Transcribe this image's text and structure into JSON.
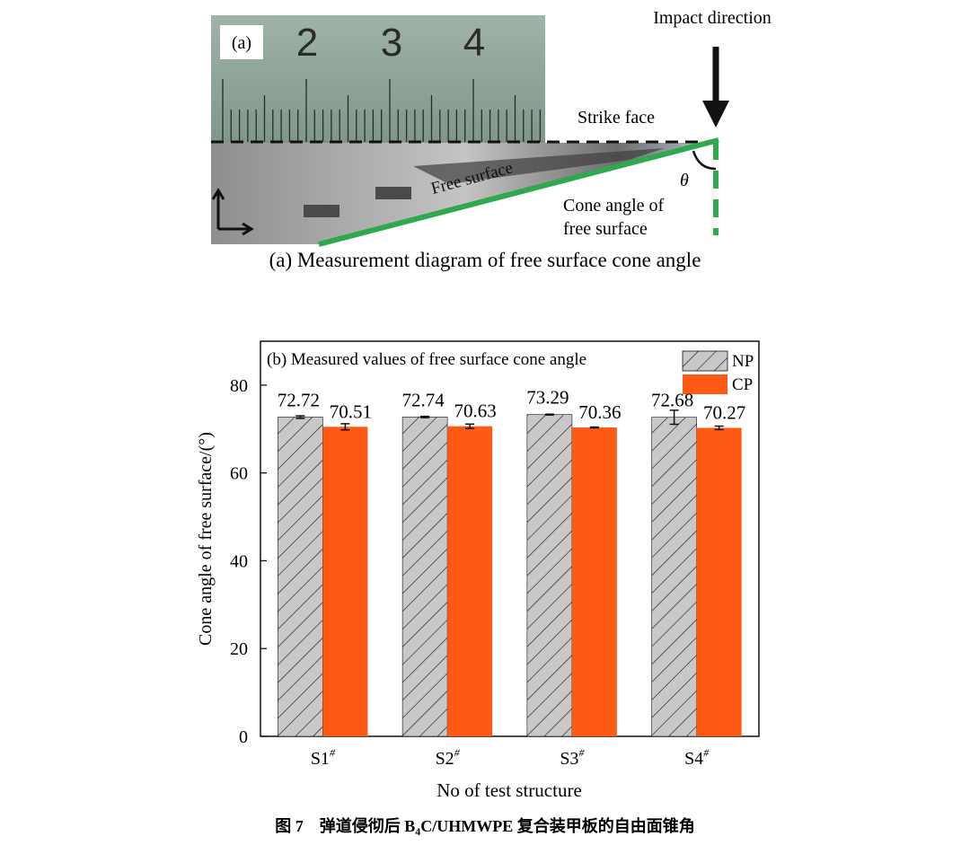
{
  "panel_a": {
    "label": "(a)",
    "ruler_numbers": [
      "2",
      "3",
      "4"
    ],
    "annotations": {
      "impact_direction": "Impact direction",
      "strike_face": "Strike face",
      "free_surface": "Free surface",
      "cone_angle_line1": "Cone angle of",
      "cone_angle_line2": "free surface",
      "theta": "θ"
    },
    "caption": "(a) Measurement diagram of free surface cone angle",
    "colors": {
      "free_surface_line": "#2fa84f",
      "strike_line": "#111111",
      "arrow": "#111111"
    }
  },
  "chart_data": {
    "type": "bar",
    "title": "(b) Measured values of free surface cone angle",
    "xlabel": "No of test structure",
    "ylabel": "Cone angle of free surface/(°)",
    "categories": [
      "S1",
      "S2",
      "S3",
      "S4"
    ],
    "category_superscript": "#",
    "ylim": [
      0,
      90
    ],
    "yticks": [
      0,
      20,
      40,
      60,
      80
    ],
    "grid": false,
    "legend_position": "top-right",
    "series": [
      {
        "name": "NP",
        "values": [
          72.72,
          72.74,
          73.29,
          72.68
        ],
        "errors": [
          0.3,
          0.15,
          0.1,
          1.6
        ],
        "labels": [
          "72.72",
          "72.74",
          "73.29",
          "72.68"
        ],
        "color": "#c8c8c8",
        "pattern": "hatch"
      },
      {
        "name": "CP",
        "values": [
          70.51,
          70.63,
          70.36,
          70.27
        ],
        "errors": [
          0.7,
          0.5,
          0.1,
          0.4
        ],
        "labels": [
          "70.51",
          "70.63",
          "70.36",
          "70.27"
        ],
        "color": "#ff5a14",
        "pattern": "solid"
      }
    ]
  },
  "figure_caption": {
    "prefix": "图 7　弹道侵彻后 B",
    "subscript": "4",
    "suffix": "C/UHMWPE 复合装甲板的自由面锥角"
  }
}
